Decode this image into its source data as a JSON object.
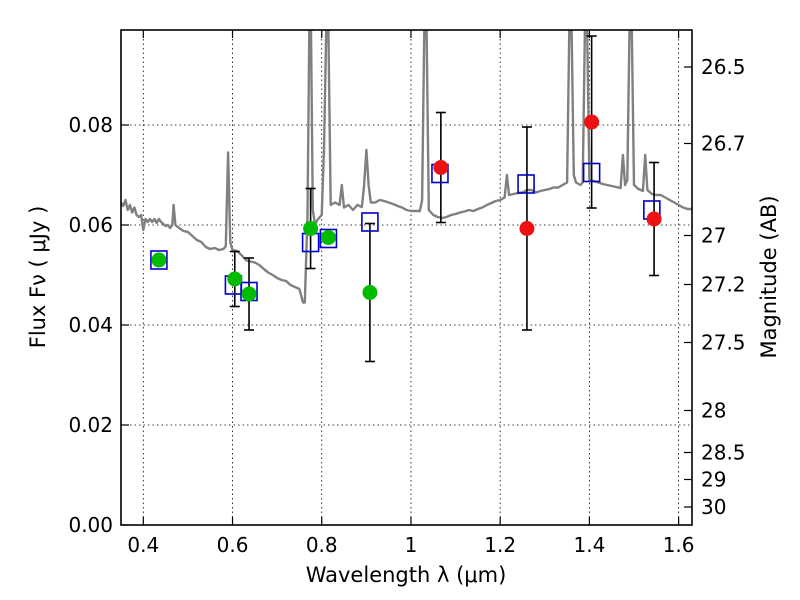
{
  "chart_data": {
    "type": "scatter",
    "xlabel": "Wavelength  λ (μm)",
    "ylabel": "Flux  Fν  ( μJy )",
    "ylabel_right": "Magnitude (AB)",
    "xlim": [
      0.35,
      1.63
    ],
    "ylim": [
      0.0,
      0.099
    ],
    "grid": true,
    "grid_style": "dotted",
    "x_ticks": [
      0.4,
      0.6,
      0.8,
      1.0,
      1.2,
      1.4,
      1.6
    ],
    "x_tick_labels": [
      "0.4",
      "0.6",
      "0.8",
      "1",
      "1.2",
      "1.4",
      "1.6"
    ],
    "y_ticks": [
      0.0,
      0.02,
      0.04,
      0.06,
      0.08
    ],
    "y_tick_labels": [
      "0.00",
      "0.02",
      "0.04",
      "0.06",
      "0.08"
    ],
    "right_ticks": [
      {
        "label": "26.5",
        "flux": 0.0916
      },
      {
        "label": "26.7",
        "flux": 0.0763
      },
      {
        "label": "27",
        "flux": 0.0579
      },
      {
        "label": "27.2",
        "flux": 0.0481
      },
      {
        "label": "27.5",
        "flux": 0.0365
      },
      {
        "label": "28",
        "flux": 0.0229
      },
      {
        "label": "28.5",
        "flux": 0.0145
      },
      {
        "label": "29",
        "flux": 0.0091
      },
      {
        "label": "30",
        "flux": 0.0036
      }
    ],
    "colors": {
      "model": "#808080",
      "model_points": "#0000cc",
      "green_points": "#00bb00",
      "red_points": "#ee1111",
      "errorbar": "#000000"
    },
    "series": [
      {
        "name": "",
        "kind": "model_spectrum",
        "points": [
          [
            0.35,
            0.0645
          ],
          [
            0.355,
            0.0638
          ],
          [
            0.36,
            0.065
          ],
          [
            0.365,
            0.063
          ],
          [
            0.37,
            0.064
          ],
          [
            0.375,
            0.0625
          ],
          [
            0.38,
            0.0635
          ],
          [
            0.385,
            0.062
          ],
          [
            0.39,
            0.0616
          ],
          [
            0.395,
            0.062
          ],
          [
            0.4,
            0.059
          ],
          [
            0.405,
            0.0612
          ],
          [
            0.41,
            0.0606
          ],
          [
            0.415,
            0.0612
          ],
          [
            0.42,
            0.0606
          ],
          [
            0.425,
            0.0612
          ],
          [
            0.43,
            0.0604
          ],
          [
            0.435,
            0.0612
          ],
          [
            0.44,
            0.0606
          ],
          [
            0.445,
            0.0602
          ],
          [
            0.45,
            0.0598
          ],
          [
            0.455,
            0.06
          ],
          [
            0.46,
            0.0594
          ],
          [
            0.465,
            0.06
          ],
          [
            0.468,
            0.064
          ],
          [
            0.472,
            0.06
          ],
          [
            0.48,
            0.0594
          ],
          [
            0.49,
            0.0588
          ],
          [
            0.5,
            0.0586
          ],
          [
            0.51,
            0.0578
          ],
          [
            0.52,
            0.057
          ],
          [
            0.53,
            0.0566
          ],
          [
            0.54,
            0.0556
          ],
          [
            0.55,
            0.0552
          ],
          [
            0.56,
            0.0554
          ],
          [
            0.57,
            0.055
          ],
          [
            0.58,
            0.0552
          ],
          [
            0.585,
            0.0558
          ],
          [
            0.59,
            0.0745
          ],
          [
            0.595,
            0.0565
          ],
          [
            0.6,
            0.055
          ],
          [
            0.61,
            0.0548
          ],
          [
            0.62,
            0.054
          ],
          [
            0.63,
            0.053
          ],
          [
            0.64,
            0.0527
          ],
          [
            0.65,
            0.0525
          ],
          [
            0.66,
            0.052
          ],
          [
            0.67,
            0.0512
          ],
          [
            0.68,
            0.0505
          ],
          [
            0.69,
            0.05
          ],
          [
            0.7,
            0.0494
          ],
          [
            0.71,
            0.049
          ],
          [
            0.72,
            0.0488
          ],
          [
            0.73,
            0.048
          ],
          [
            0.74,
            0.0476
          ],
          [
            0.75,
            0.0472
          ],
          [
            0.758,
            0.0445
          ],
          [
            0.762,
            0.0445
          ],
          [
            0.768,
            0.062
          ],
          [
            0.772,
            0.099
          ],
          [
            0.776,
            0.099
          ],
          [
            0.78,
            0.063
          ],
          [
            0.785,
            0.06
          ],
          [
            0.79,
            0.061
          ],
          [
            0.8,
            0.062
          ],
          [
            0.805,
            0.075
          ],
          [
            0.81,
            0.099
          ],
          [
            0.815,
            0.099
          ],
          [
            0.82,
            0.064
          ],
          [
            0.83,
            0.0645
          ],
          [
            0.84,
            0.064
          ],
          [
            0.845,
            0.068
          ],
          [
            0.85,
            0.0635
          ],
          [
            0.86,
            0.064
          ],
          [
            0.87,
            0.063
          ],
          [
            0.88,
            0.064
          ],
          [
            0.89,
            0.0636
          ],
          [
            0.895,
            0.068
          ],
          [
            0.9,
            0.075
          ],
          [
            0.905,
            0.068
          ],
          [
            0.91,
            0.0645
          ],
          [
            0.92,
            0.0645
          ],
          [
            0.93,
            0.065
          ],
          [
            0.94,
            0.0648
          ],
          [
            0.95,
            0.0645
          ],
          [
            0.96,
            0.0642
          ],
          [
            0.97,
            0.0638
          ],
          [
            0.98,
            0.0635
          ],
          [
            0.99,
            0.063
          ],
          [
            1.0,
            0.0628
          ],
          [
            1.01,
            0.0628
          ],
          [
            1.02,
            0.0628
          ],
          [
            1.025,
            0.065
          ],
          [
            1.03,
            0.099
          ],
          [
            1.035,
            0.099
          ],
          [
            1.04,
            0.063
          ],
          [
            1.05,
            0.062
          ],
          [
            1.06,
            0.0616
          ],
          [
            1.07,
            0.0614
          ],
          [
            1.08,
            0.0616
          ],
          [
            1.09,
            0.062
          ],
          [
            1.1,
            0.0622
          ],
          [
            1.11,
            0.0625
          ],
          [
            1.12,
            0.0627
          ],
          [
            1.13,
            0.063
          ],
          [
            1.14,
            0.0628
          ],
          [
            1.15,
            0.0632
          ],
          [
            1.16,
            0.0635
          ],
          [
            1.17,
            0.064
          ],
          [
            1.18,
            0.0644
          ],
          [
            1.19,
            0.0648
          ],
          [
            1.2,
            0.065
          ],
          [
            1.21,
            0.0655
          ],
          [
            1.215,
            0.07
          ],
          [
            1.22,
            0.066
          ],
          [
            1.23,
            0.0662
          ],
          [
            1.24,
            0.0664
          ],
          [
            1.25,
            0.0665
          ],
          [
            1.26,
            0.067
          ],
          [
            1.27,
            0.067
          ],
          [
            1.28,
            0.0665
          ],
          [
            1.29,
            0.0668
          ],
          [
            1.3,
            0.067
          ],
          [
            1.31,
            0.0672
          ],
          [
            1.32,
            0.0675
          ],
          [
            1.33,
            0.0675
          ],
          [
            1.34,
            0.068
          ],
          [
            1.35,
            0.0685
          ],
          [
            1.355,
            0.099
          ],
          [
            1.36,
            0.099
          ],
          [
            1.365,
            0.07
          ],
          [
            1.37,
            0.0685
          ],
          [
            1.38,
            0.068
          ],
          [
            1.385,
            0.0685
          ],
          [
            1.39,
            0.099
          ],
          [
            1.395,
            0.099
          ],
          [
            1.4,
            0.069
          ],
          [
            1.41,
            0.0688
          ],
          [
            1.42,
            0.0685
          ],
          [
            1.43,
            0.0682
          ],
          [
            1.44,
            0.068
          ],
          [
            1.45,
            0.0678
          ],
          [
            1.46,
            0.0676
          ],
          [
            1.47,
            0.0674
          ],
          [
            1.475,
            0.074
          ],
          [
            1.48,
            0.068
          ],
          [
            1.485,
            0.069
          ],
          [
            1.49,
            0.099
          ],
          [
            1.495,
            0.099
          ],
          [
            1.5,
            0.068
          ],
          [
            1.51,
            0.0672
          ],
          [
            1.52,
            0.0668
          ],
          [
            1.525,
            0.074
          ],
          [
            1.53,
            0.067
          ],
          [
            1.54,
            0.0662
          ],
          [
            1.55,
            0.066
          ],
          [
            1.56,
            0.066
          ],
          [
            1.57,
            0.0655
          ],
          [
            1.58,
            0.065
          ],
          [
            1.59,
            0.0645
          ],
          [
            1.6,
            0.064
          ],
          [
            1.61,
            0.0635
          ],
          [
            1.62,
            0.0632
          ],
          [
            1.63,
            0.0632
          ]
        ]
      },
      {
        "name": "",
        "kind": "model_points",
        "marker": "open-square",
        "points": [
          [
            0.435,
            0.053
          ],
          [
            0.602,
            0.048
          ],
          [
            0.637,
            0.0467
          ],
          [
            0.775,
            0.0565
          ],
          [
            0.815,
            0.0573
          ],
          [
            0.908,
            0.0606
          ],
          [
            1.065,
            0.0703
          ],
          [
            1.258,
            0.0682
          ],
          [
            1.405,
            0.0705
          ],
          [
            1.54,
            0.063
          ]
        ]
      },
      {
        "name": "",
        "kind": "observed_points",
        "marker": "filled-circle",
        "color": "green",
        "points": [
          {
            "x": 0.435,
            "y": 0.053,
            "err": null
          },
          {
            "x": 0.605,
            "y": 0.0492,
            "err": 0.0055
          },
          {
            "x": 0.637,
            "y": 0.0462,
            "err": 0.0072
          },
          {
            "x": 0.775,
            "y": 0.0593,
            "err": 0.008
          },
          {
            "x": 0.815,
            "y": 0.0575,
            "err": null
          },
          {
            "x": 0.908,
            "y": 0.0465,
            "err": 0.0138
          }
        ]
      },
      {
        "name": "",
        "kind": "observed_points",
        "marker": "filled-circle",
        "color": "red",
        "points": [
          {
            "x": 1.067,
            "y": 0.0715,
            "err": 0.011
          },
          {
            "x": 1.26,
            "y": 0.0593,
            "err": 0.0203
          },
          {
            "x": 1.405,
            "y": 0.0806,
            "err": 0.0172
          },
          {
            "x": 1.545,
            "y": 0.0612,
            "err": 0.0113
          }
        ]
      }
    ]
  }
}
